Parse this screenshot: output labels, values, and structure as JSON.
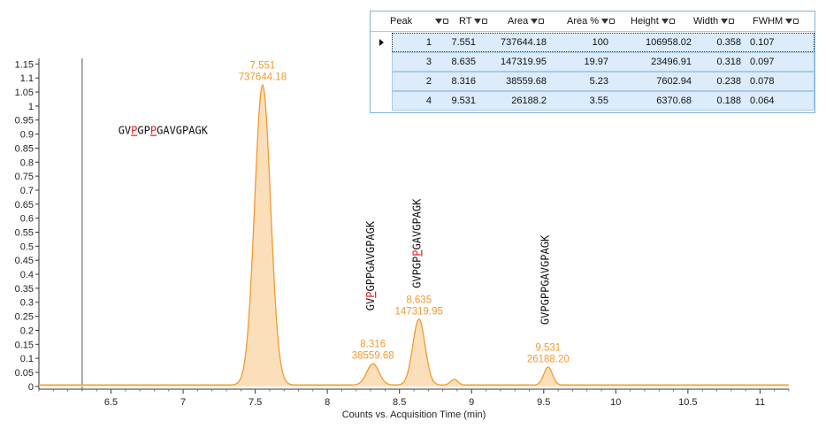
{
  "chart_data": {
    "type": "line",
    "title": "",
    "xlabel": "Counts vs. Acquisition Time (min)",
    "ylabel": "",
    "xlim": [
      6.0,
      11.2
    ],
    "ylim": [
      -0.01,
      1.17
    ],
    "x_ticks": [
      "6.5",
      "7",
      "7.5",
      "8",
      "8.5",
      "9",
      "9.5",
      "10",
      "10.5",
      "11"
    ],
    "y_ticks": [
      "0",
      "0.05",
      "0.1",
      "0.15",
      "0.2",
      "0.25",
      "0.3",
      "0.35",
      "0.4",
      "0.45",
      "0.5",
      "0.55",
      "0.6",
      "0.65",
      "0.7",
      "0.75",
      "0.8",
      "0.85",
      "0.9",
      "0.95",
      "1",
      "1.05",
      "1.1",
      "1.15"
    ],
    "y_scale_exponent": "x10^5",
    "series": [
      {
        "name": "",
        "color": "#f19a2e",
        "fill": "#fbdcb3",
        "peaks": [
          {
            "rt": 7.551,
            "height": 1.07,
            "width": 0.13
          },
          {
            "rt": 8.316,
            "height": 0.076,
            "width": 0.1
          },
          {
            "rt": 8.635,
            "height": 0.235,
            "width": 0.1
          },
          {
            "rt": 8.88,
            "height": 0.02,
            "width": 0.06
          },
          {
            "rt": 9.531,
            "height": 0.064,
            "width": 0.07
          }
        ],
        "baseline": 0.005
      }
    ],
    "vertical_marker_x": 6.3,
    "peak_annotations": [
      {
        "rt_text": "7.551",
        "area_text": "737644.18",
        "x": 7.551,
        "y": 1.07
      },
      {
        "rt_text": "8.316",
        "area_text": "38559.68",
        "x": 8.316,
        "y": 0.076
      },
      {
        "rt_text": "8.635",
        "area_text": "147319.95",
        "x": 8.635,
        "y": 0.235
      },
      {
        "rt_text": "9.531",
        "area_text": "26188.20",
        "x": 9.531,
        "y": 0.064
      }
    ],
    "compound_labels": [
      {
        "text": "GVPGPPGAVGPAGK",
        "highlight": [
          2,
          5
        ],
        "orientation": "horizontal",
        "x": 6.55,
        "y": 0.9
      },
      {
        "text": "GVPGPPGAVGPAGK",
        "highlight": [
          2
        ],
        "orientation": "vertical",
        "x": 8.3,
        "y": 0.27
      },
      {
        "text": "GVPGPPGAVGPAGK",
        "highlight": [
          5
        ],
        "orientation": "vertical",
        "x": 8.62,
        "y": 0.35
      },
      {
        "text": "GVPGPPGAVGPAGK",
        "highlight": [],
        "orientation": "vertical",
        "x": 9.51,
        "y": 0.22
      }
    ],
    "highlight_color": "#e02020"
  },
  "table": {
    "columns": [
      "Peak",
      "RT",
      "Area",
      "Area %",
      "Height",
      "Width",
      "FWHM"
    ],
    "rows": [
      {
        "peak": "1",
        "rt": "7.551",
        "area": "737644.18",
        "area_pct": "100",
        "height": "106958.02",
        "width": "0.358",
        "fwhm": "0.107",
        "selected": true
      },
      {
        "peak": "3",
        "rt": "8.635",
        "area": "147319.95",
        "area_pct": "19.97",
        "height": "23496.91",
        "width": "0.318",
        "fwhm": "0.097",
        "selected": false
      },
      {
        "peak": "2",
        "rt": "8.316",
        "area": "38559.68",
        "area_pct": "5.23",
        "height": "7602.94",
        "width": "0.238",
        "fwhm": "0.078",
        "selected": false
      },
      {
        "peak": "4",
        "rt": "9.531",
        "area": "26188.2",
        "area_pct": "3.55",
        "height": "6370.68",
        "width": "0.188",
        "fwhm": "0.064",
        "selected": false
      }
    ]
  }
}
